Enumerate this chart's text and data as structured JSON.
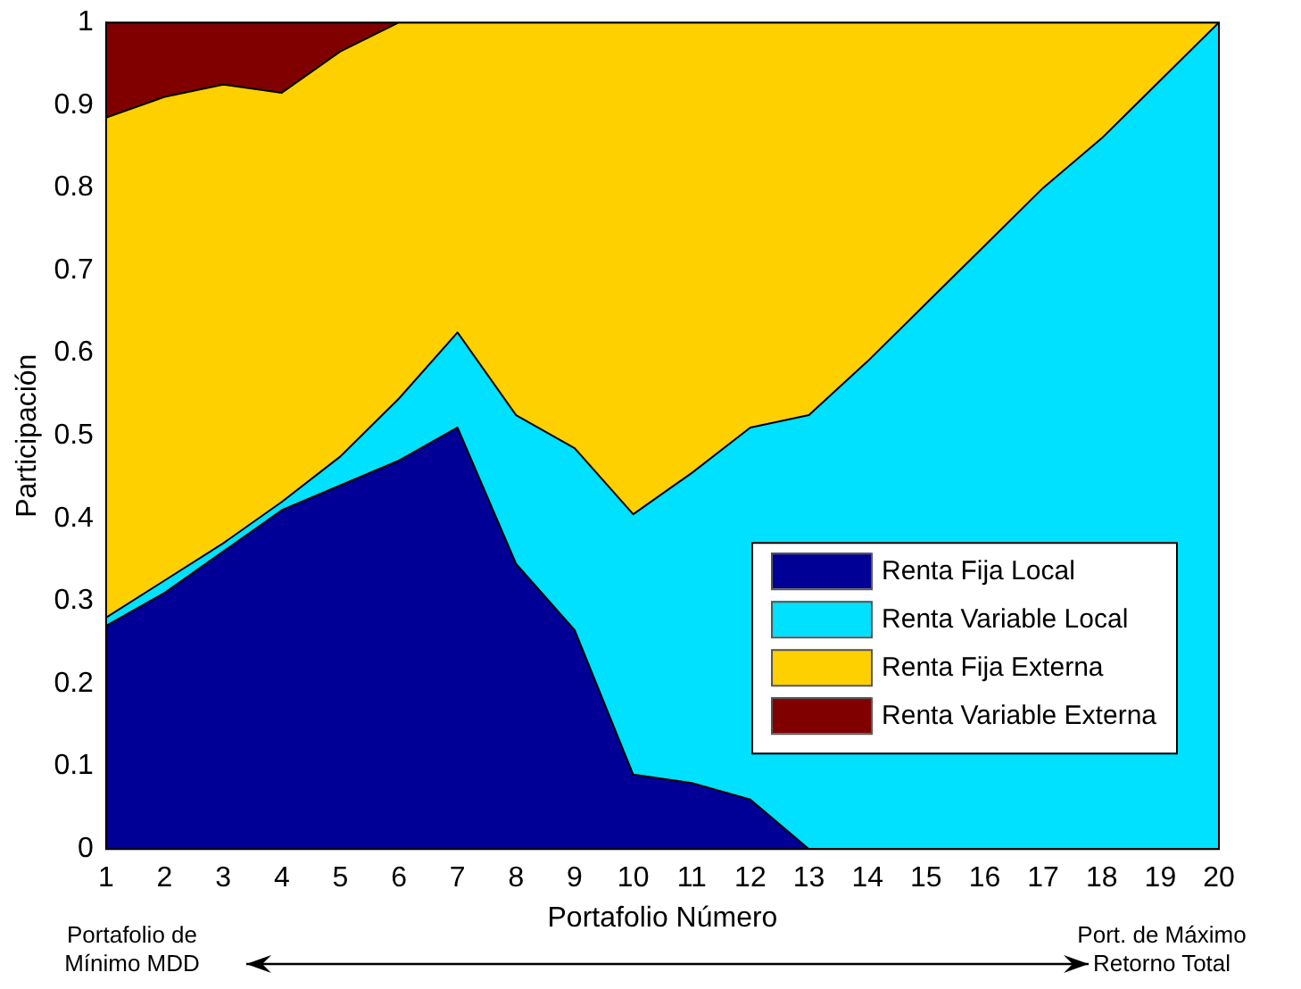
{
  "chart_data": {
    "type": "area",
    "stacked": true,
    "xlabel": "Portafolio Número",
    "ylabel": "Participación",
    "x": [
      1,
      2,
      3,
      4,
      5,
      6,
      7,
      8,
      9,
      10,
      11,
      12,
      13,
      14,
      15,
      16,
      17,
      18,
      19,
      20
    ],
    "xlim": [
      1,
      20
    ],
    "xticks": [
      1,
      2,
      3,
      4,
      5,
      6,
      7,
      8,
      9,
      10,
      11,
      12,
      13,
      14,
      15,
      16,
      17,
      18,
      19,
      20
    ],
    "ylim": [
      0,
      1
    ],
    "yticks": [
      0,
      0.1,
      0.2,
      0.3,
      0.4,
      0.5,
      0.6,
      0.7,
      0.8,
      0.9,
      1
    ],
    "grid": false,
    "legend": "bottom right",
    "series": [
      {
        "name": "Renta Fija Local",
        "color": "#000096",
        "values": [
          0.27,
          0.31,
          0.36,
          0.41,
          0.44,
          0.47,
          0.51,
          0.345,
          0.265,
          0.09,
          0.08,
          0.06,
          0,
          0,
          0,
          0,
          0,
          0,
          0,
          0
        ]
      },
      {
        "name": "Renta Variable Local",
        "color": "#00e0ff",
        "values": [
          0.01,
          0.015,
          0.01,
          0.01,
          0.035,
          0.075,
          0.115,
          0.18,
          0.22,
          0.315,
          0.375,
          0.45,
          0.525,
          0.59,
          0.66,
          0.73,
          0.8,
          0.86,
          0.93,
          1
        ]
      },
      {
        "name": "Renta Fija Externa",
        "color": "#ffd000",
        "values": [
          0.605,
          0.585,
          0.555,
          0.495,
          0.49,
          0.455,
          0.375,
          0.475,
          0.515,
          0.595,
          0.545,
          0.49,
          0.475,
          0.41,
          0.34,
          0.27,
          0.2,
          0.14,
          0.07,
          0
        ]
      },
      {
        "name": "Renta Variable Externa",
        "color": "#800000",
        "values": [
          0.115,
          0.09,
          0.075,
          0.085,
          0.035,
          0,
          0,
          0,
          0,
          0,
          0,
          0,
          0,
          0,
          0,
          0,
          0,
          0,
          0,
          0
        ]
      }
    ],
    "annotations": [
      "Portafolio de\nMínimo MDD",
      "Port. de Máximo\nRetorno Total"
    ]
  }
}
